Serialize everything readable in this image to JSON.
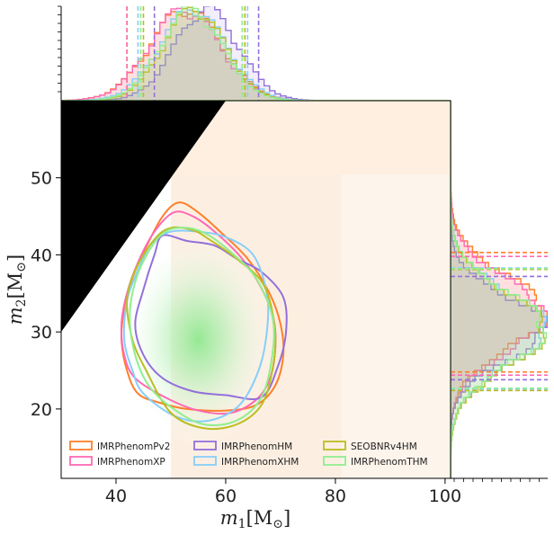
{
  "chart_data": {
    "type": "scatter",
    "subtype": "corner-plot",
    "xlabel": "m1 [M⊙]",
    "ylabel": "m2 [M⊙]",
    "xlabel_parts": {
      "sym": "m",
      "sub": "1",
      "unit_pre": "[M",
      "unit_sub": "⊙",
      "unit_post": "]"
    },
    "ylabel_parts": {
      "sym": "m",
      "sub": "2",
      "unit_pre": "[M",
      "unit_sub": "⊙",
      "unit_post": "]"
    },
    "xlim": [
      30,
      101
    ],
    "ylim": [
      11,
      60
    ],
    "xticks": [
      40,
      60,
      80,
      100
    ],
    "yticks": [
      20,
      30,
      40,
      50
    ],
    "xticklabels": [
      "40",
      "60",
      "80",
      "100"
    ],
    "yticklabels": [
      "20",
      "30",
      "40",
      "50"
    ],
    "grid": false,
    "legend_position": "lower-left",
    "excluded_region": "m2 > m1 (black)",
    "density_peak": {
      "m1": 55,
      "m2": 29
    },
    "series": [
      {
        "name": "IMRPhenomPv2",
        "color": "#ff7f2a",
        "contour": [
          [
            44,
            22
          ],
          [
            42,
            25
          ],
          [
            41,
            29
          ],
          [
            41.5,
            33
          ],
          [
            43,
            37
          ],
          [
            45.5,
            41
          ],
          [
            48.5,
            45
          ],
          [
            51.5,
            46.8
          ],
          [
            55,
            45.5
          ],
          [
            59,
            43
          ],
          [
            64,
            39.5
          ],
          [
            68,
            35
          ],
          [
            70,
            31
          ],
          [
            70.5,
            27
          ],
          [
            69,
            23
          ],
          [
            65.5,
            20.5
          ],
          [
            60,
            19.8
          ],
          [
            53,
            20
          ],
          [
            48,
            20.8
          ]
        ],
        "m1_interval": [
          42,
          63.5
        ],
        "m2_interval": [
          24.8,
          40.3
        ]
      },
      {
        "name": "IMRPhenomXP",
        "color": "#ff69b4",
        "contour": [
          [
            43.5,
            24
          ],
          [
            41.5,
            27
          ],
          [
            41,
            31
          ],
          [
            42,
            35
          ],
          [
            44,
            39
          ],
          [
            47,
            43
          ],
          [
            50.5,
            45.5
          ],
          [
            54,
            45
          ],
          [
            58,
            43
          ],
          [
            63,
            39.5
          ],
          [
            67,
            35
          ],
          [
            69,
            30.5
          ],
          [
            68.5,
            25
          ],
          [
            66,
            21.5
          ],
          [
            61,
            19.5
          ],
          [
            55,
            19.8
          ],
          [
            49,
            21.5
          ]
        ],
        "m1_interval": [
          42,
          63
        ],
        "m2_interval": [
          24.4,
          39.8
        ]
      },
      {
        "name": "IMRPhenomHM",
        "color": "#9370db",
        "contour": [
          [
            48.5,
            24
          ],
          [
            45,
            27
          ],
          [
            43.5,
            31
          ],
          [
            45,
            35.5
          ],
          [
            47,
            40
          ],
          [
            48.5,
            42.5
          ],
          [
            53,
            41.8
          ],
          [
            58,
            41.2
          ],
          [
            62,
            39.5
          ],
          [
            66.5,
            37.8
          ],
          [
            70.5,
            34.5
          ],
          [
            71,
            30
          ],
          [
            69.5,
            25.5
          ],
          [
            66.5,
            21.5
          ],
          [
            60,
            21.8
          ],
          [
            54,
            22.3
          ]
        ],
        "m1_interval": [
          47,
          66
        ],
        "m2_interval": [
          23.8,
          37.2
        ]
      },
      {
        "name": "IMRPhenomXHM",
        "color": "#87cefa",
        "contour": [
          [
            45,
            22
          ],
          [
            43,
            25
          ],
          [
            41.5,
            29
          ],
          [
            42,
            34
          ],
          [
            44,
            38
          ],
          [
            46.5,
            41.5
          ],
          [
            50,
            43
          ],
          [
            55,
            43
          ],
          [
            60,
            42.3
          ],
          [
            65,
            40
          ],
          [
            67.5,
            35
          ],
          [
            67.5,
            30
          ],
          [
            66,
            25
          ],
          [
            62.5,
            20.5
          ],
          [
            57,
            18.5
          ],
          [
            51,
            19
          ]
        ],
        "m1_interval": [
          44,
          64
        ],
        "m2_interval": [
          22.6,
          38.3
        ]
      },
      {
        "name": "SEOBNRv4HM",
        "color": "#bcbd22",
        "contour": [
          [
            45.5,
            25
          ],
          [
            43,
            29
          ],
          [
            42,
            34
          ],
          [
            43.5,
            38
          ],
          [
            47,
            42
          ],
          [
            50,
            43.5
          ],
          [
            54,
            43.2
          ],
          [
            57,
            42
          ],
          [
            62,
            39.5
          ],
          [
            67,
            36
          ],
          [
            69,
            30
          ],
          [
            68.5,
            25
          ],
          [
            66.5,
            20.5
          ],
          [
            62,
            18
          ],
          [
            56,
            17.5
          ],
          [
            50,
            19.5
          ]
        ],
        "m1_interval": [
          45,
          63.5
        ],
        "m2_interval": [
          22.4,
          38.1
        ]
      },
      {
        "name": "IMRPhenomTHM",
        "color": "#90ee90",
        "contour": [
          [
            46,
            23
          ],
          [
            43.5,
            27
          ],
          [
            42.5,
            32
          ],
          [
            43.5,
            36.5
          ],
          [
            46,
            40.5
          ],
          [
            49,
            43
          ],
          [
            53,
            43.5
          ],
          [
            57,
            42.5
          ],
          [
            61.5,
            40
          ],
          [
            65.5,
            37
          ],
          [
            68.5,
            32
          ],
          [
            68.5,
            27
          ],
          [
            66.5,
            21.5
          ],
          [
            62,
            18.5
          ],
          [
            56,
            18
          ],
          [
            50.5,
            20
          ]
        ],
        "m1_interval": [
          44.5,
          63
        ],
        "m2_interval": [
          22.7,
          38.2
        ]
      }
    ]
  }
}
